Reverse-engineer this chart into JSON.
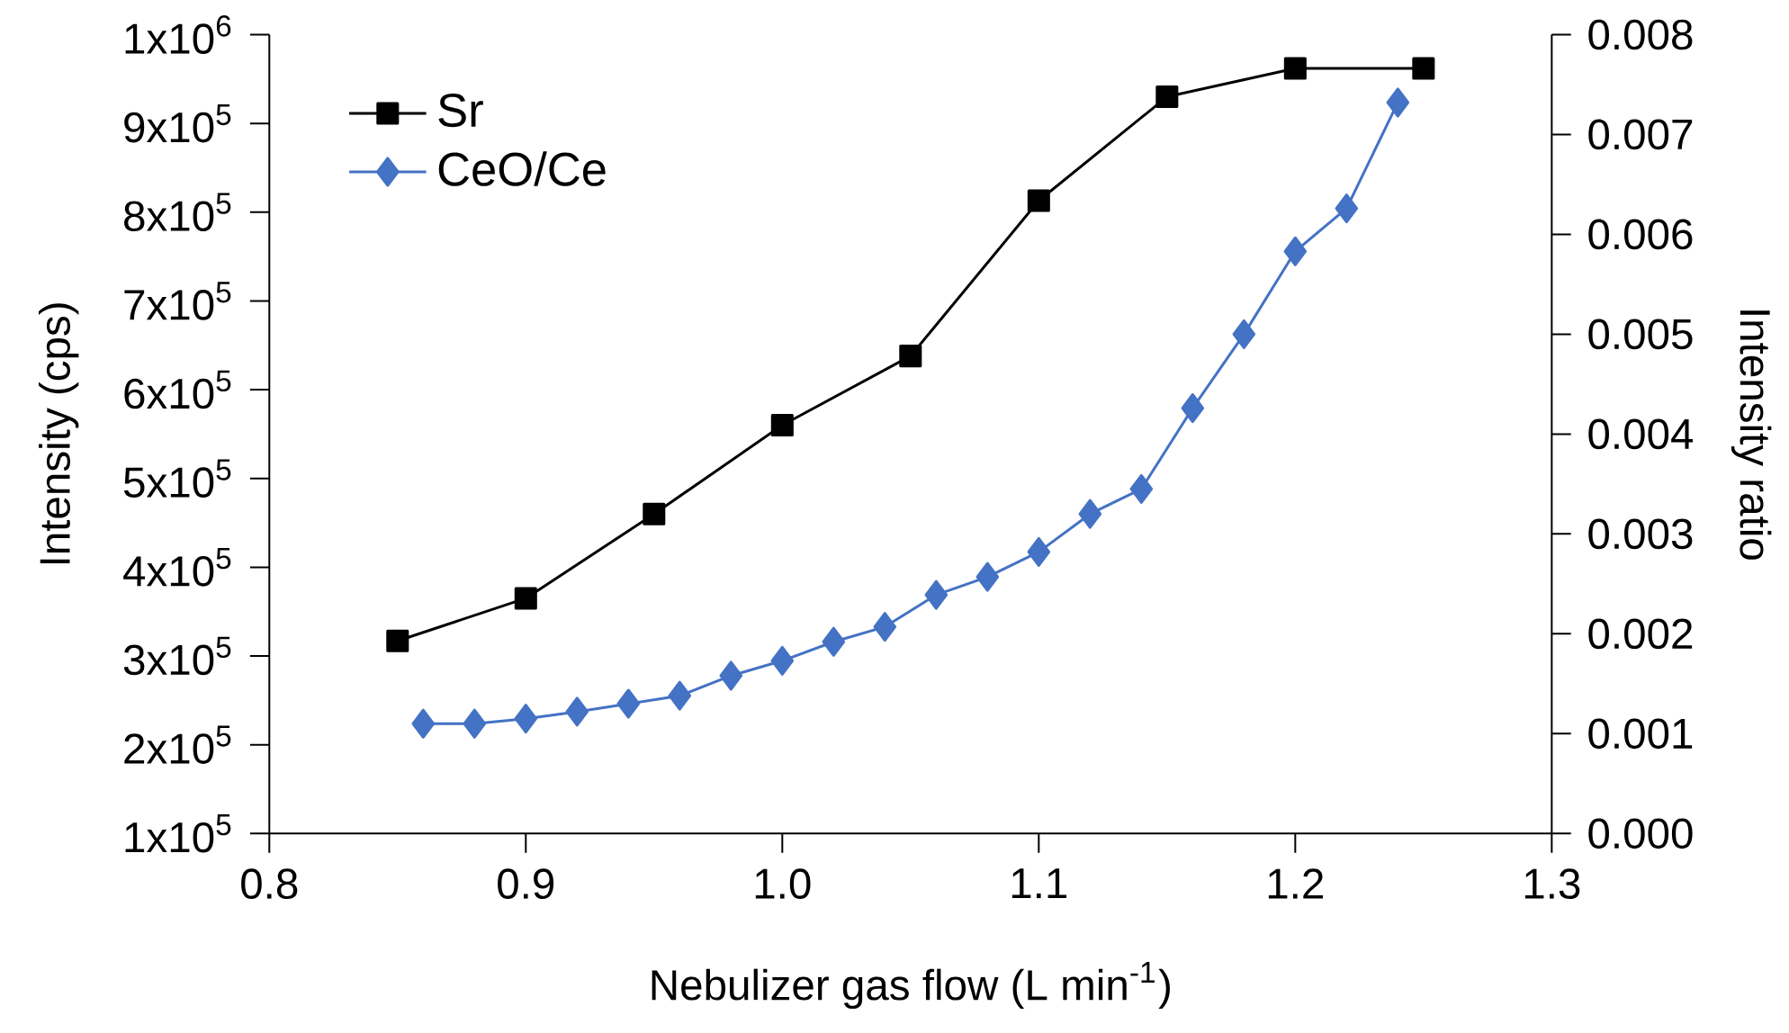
{
  "chart_data": {
    "type": "line",
    "xlabel": "Nebulizer gas flow (L min$^{-1}$)",
    "ylabel": "Intensity (cps)",
    "y2label": "Intensity ratio",
    "xlim": [
      0.8,
      1.3
    ],
    "xticks": [
      0.8,
      0.9,
      {
        "value": 1.0,
        "label": "1.0"
      },
      1.1,
      1.2,
      1.3
    ],
    "ylim": [
      100000,
      1000000
    ],
    "yticks": [
      {
        "value": 100000,
        "label": "1x10$^{5}$"
      },
      {
        "value": 200000,
        "label": "2x10$^{5}$"
      },
      {
        "value": 300000,
        "label": "3x10$^{5}$"
      },
      {
        "value": 400000,
        "label": "4x10$^{5}$"
      },
      {
        "value": 500000,
        "label": "5x10$^{5}$"
      },
      {
        "value": 600000,
        "label": "6x10$^{5}$"
      },
      {
        "value": 700000,
        "label": "7x10$^{5}$"
      },
      {
        "value": 800000,
        "label": "8x10$^{5}$"
      },
      {
        "value": 900000,
        "label": "9x10$^{5}$"
      },
      {
        "value": 1000000,
        "label": "1x10$^{6}$"
      }
    ],
    "y2lim": [
      0,
      0.008
    ],
    "y2ticks": [
      {
        "value": 0,
        "label": "0.000"
      },
      {
        "value": 0.001,
        "label": "0.001"
      },
      {
        "value": 0.002,
        "label": "0.002"
      },
      {
        "value": 0.003,
        "label": "0.003"
      },
      {
        "value": 0.004,
        "label": "0.004"
      },
      {
        "value": 0.005,
        "label": "0.005"
      },
      {
        "value": 0.006,
        "label": "0.006"
      },
      {
        "value": 0.007,
        "label": "0.007"
      },
      {
        "value": 0.008,
        "label": "0.008"
      }
    ],
    "legend": "top left",
    "grid": false,
    "line_style": "solid",
    "series": [
      {
        "name": "Sr",
        "color": "#000000",
        "marker": "square",
        "x": [
          0.85,
          0.9,
          0.95,
          1.0,
          1.05,
          1.1,
          1.15,
          1.2,
          1.25
        ],
        "values": [
          317000,
          365000,
          460000,
          560000,
          638000,
          813000,
          930000,
          962000,
          962000
        ]
      },
      {
        "name": "CeO/Ce",
        "color": "#4472c4",
        "marker": "diamond",
        "axis": "y2",
        "x": [
          0.86,
          0.88,
          0.9,
          0.92,
          0.94,
          0.96,
          0.98,
          1.0,
          1.02,
          1.04,
          1.06,
          1.08,
          1.1,
          1.12,
          1.14,
          1.16,
          1.18,
          1.2,
          1.22,
          1.24
        ],
        "values": [
          0.0011,
          0.0011,
          0.00115,
          0.00122,
          0.0013,
          0.00138,
          0.00158,
          0.00173,
          0.00192,
          0.00207,
          0.00239,
          0.00257,
          0.00282,
          0.0032,
          0.00345,
          0.00426,
          0.005,
          0.00583,
          0.00626,
          0.00732
        ]
      }
    ]
  }
}
